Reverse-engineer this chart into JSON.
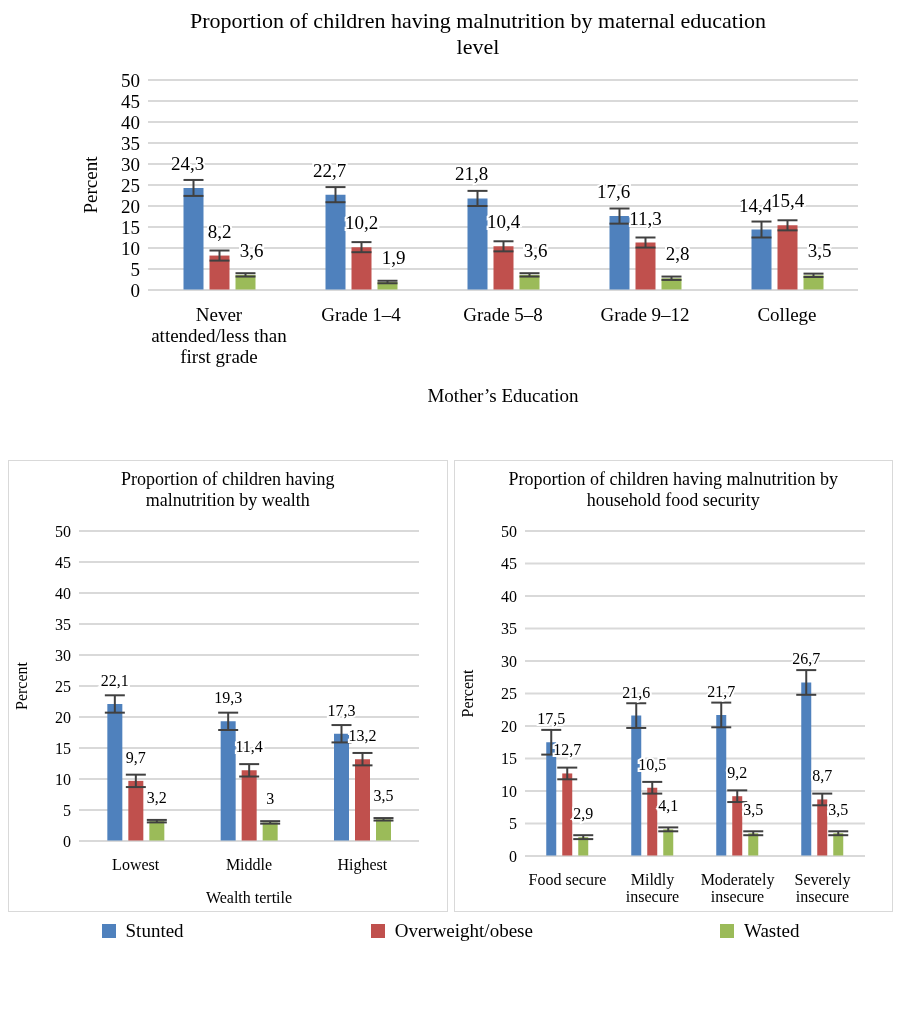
{
  "chart_data": [
    {
      "type": "bar",
      "title": "Proportion of children having malnutrition by maternal education level",
      "xlabel": "Mother’s Education",
      "ylabel": "Percent",
      "categories": [
        "Never attended/less than first grade",
        "Grade 1–4",
        "Grade 5–8",
        "Grade 9–12",
        "College"
      ],
      "ylim": [
        0,
        50
      ],
      "yticks": [
        0,
        5,
        10,
        15,
        20,
        25,
        30,
        35,
        40,
        45,
        50
      ],
      "grid": "y",
      "series": [
        {
          "color": "#4f81bd",
          "values": [
            24.3,
            22.7,
            21.8,
            17.6,
            14.4
          ],
          "errors": [
            1.9,
            1.8,
            1.8,
            1.8,
            1.9
          ],
          "value_labels": [
            "24,3",
            "22,7",
            "21,8",
            "17,6",
            "14,4"
          ]
        },
        {
          "color": "#c0504d",
          "values": [
            8.2,
            10.2,
            10.4,
            11.3,
            15.4
          ],
          "errors": [
            1.2,
            1.2,
            1.2,
            1.2,
            1.2
          ],
          "value_labels": [
            "8,2",
            "10,2",
            "10,4",
            "11,3",
            "15,4"
          ]
        },
        {
          "color": "#9bbb59",
          "values": [
            3.6,
            1.9,
            3.6,
            2.8,
            3.5
          ],
          "errors": [
            0.4,
            0.3,
            0.4,
            0.4,
            0.4
          ],
          "value_labels": [
            "3,6",
            "1,9",
            "3,6",
            "2,8",
            "3,5"
          ]
        }
      ]
    },
    {
      "type": "bar",
      "title": "Proportion of children having malnutrition by wealth",
      "xlabel": "Wealth tertile",
      "ylabel": "Percent",
      "categories": [
        "Lowest",
        "Middle",
        "Highest"
      ],
      "ylim": [
        0,
        50
      ],
      "yticks": [
        0,
        5,
        10,
        15,
        20,
        25,
        30,
        35,
        40,
        45,
        50
      ],
      "grid": "y",
      "series": [
        {
          "color": "#4f81bd",
          "values": [
            22.1,
            19.3,
            17.3
          ],
          "errors": [
            1.4,
            1.4,
            1.4
          ],
          "value_labels": [
            "22,1",
            "19,3",
            "17,3"
          ]
        },
        {
          "color": "#c0504d",
          "values": [
            9.7,
            11.4,
            13.2
          ],
          "errors": [
            1.0,
            1.0,
            1.0
          ],
          "value_labels": [
            "9,7",
            "11,4",
            "13,2"
          ]
        },
        {
          "color": "#9bbb59",
          "values": [
            3.2,
            3,
            3.5
          ],
          "errors": [
            0.2,
            0.2,
            0.2
          ],
          "value_labels": [
            "3,2",
            "3",
            "3,5"
          ]
        }
      ]
    },
    {
      "type": "bar",
      "title": "Proportion of children having malnutrition by household food security",
      "ylabel": "Percent",
      "categories": [
        "Food secure",
        "Mildly insecure",
        "Moderately insecure",
        "Severely insecure"
      ],
      "ylim": [
        0,
        50
      ],
      "yticks": [
        0,
        5,
        10,
        15,
        20,
        25,
        30,
        35,
        40,
        45,
        50
      ],
      "grid": "y",
      "legend": "bottom",
      "series": [
        {
          "name": "Stunted",
          "color": "#4f81bd",
          "values": [
            17.5,
            21.6,
            21.7,
            26.7
          ],
          "errors": [
            1.9,
            1.9,
            1.9,
            1.9
          ],
          "value_labels": [
            "17,5",
            "21,6",
            "21,7",
            "26,7"
          ]
        },
        {
          "name": "Overweight/obese",
          "color": "#c0504d",
          "values": [
            12.7,
            10.5,
            9.2,
            8.7
          ],
          "errors": [
            0.9,
            0.9,
            0.9,
            0.9
          ],
          "value_labels": [
            "12,7",
            "10,5",
            "9,2",
            "8,7"
          ]
        },
        {
          "name": "Wasted",
          "color": "#9bbb59",
          "values": [
            2.9,
            4.1,
            3.5,
            3.5
          ],
          "errors": [
            0.3,
            0.3,
            0.3,
            0.3
          ],
          "value_labels": [
            "2,9",
            "4,1",
            "3,5",
            "3,5"
          ]
        }
      ]
    }
  ]
}
